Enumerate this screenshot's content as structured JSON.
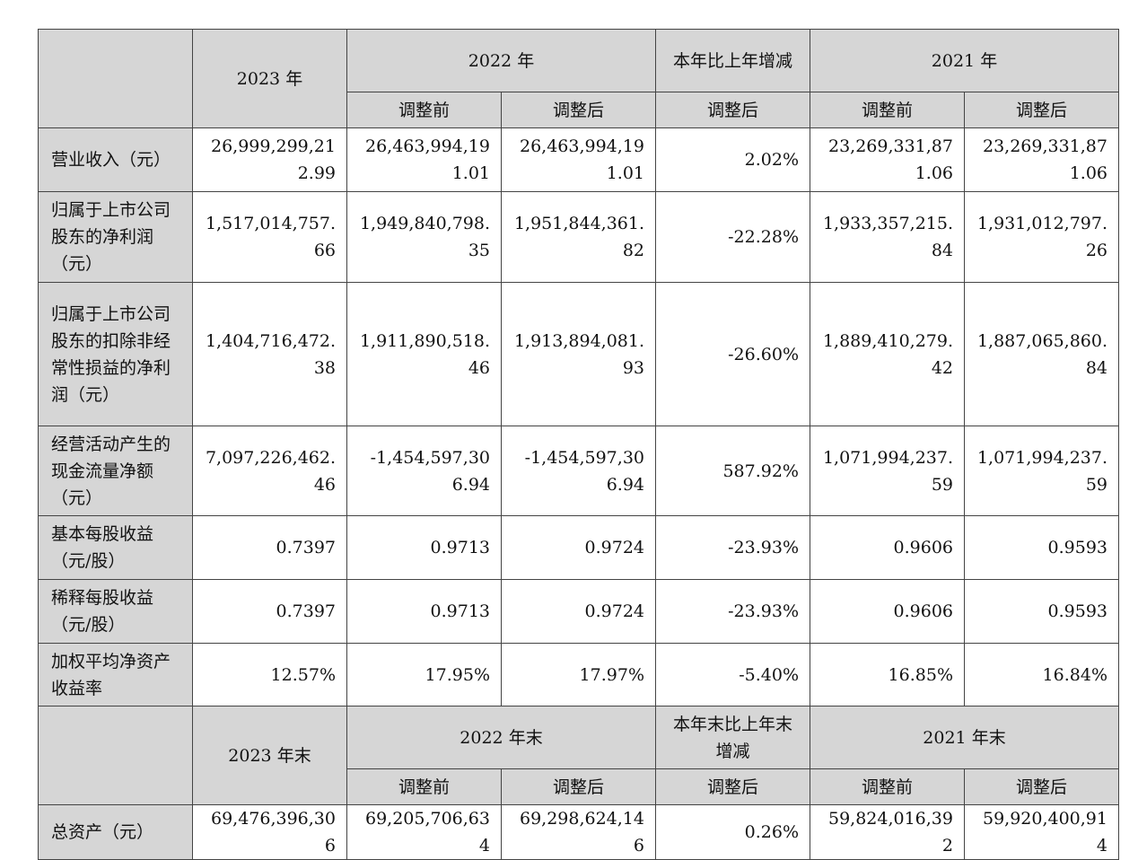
{
  "header1": {
    "y2023": "2023 年",
    "y2022": "2022 年",
    "change": "本年比上年增减",
    "y2021": "2021 年",
    "before": "调整前",
    "after": "调整后"
  },
  "rows": [
    {
      "label": "营业收入（元）",
      "v2023": "26,999,299,212.99",
      "v2022_before": "26,463,994,191.01",
      "v2022_after": "26,463,994,191.01",
      "change": "2.02%",
      "v2021_before": "23,269,331,871.06",
      "v2021_after": "23,269,331,871.06"
    },
    {
      "label": "归属于上市公司股东的净利润（元）",
      "v2023": "1,517,014,757.66",
      "v2022_before": "1,949,840,798.35",
      "v2022_after": "1,951,844,361.82",
      "change": "-22.28%",
      "v2021_before": "1,933,357,215.84",
      "v2021_after": "1,931,012,797.26"
    },
    {
      "label": "归属于上市公司股东的扣除非经常性损益的净利润（元）",
      "v2023": "1,404,716,472.38",
      "v2022_before": "1,911,890,518.46",
      "v2022_after": "1,913,894,081.93",
      "change": "-26.60%",
      "v2021_before": "1,889,410,279.42",
      "v2021_after": "1,887,065,860.84"
    },
    {
      "label": "经营活动产生的现金流量净额（元）",
      "v2023": "7,097,226,462.46",
      "v2022_before": "-1,454,597,306.94",
      "v2022_after": "-1,454,597,306.94",
      "change": "587.92%",
      "v2021_before": "1,071,994,237.59",
      "v2021_after": "1,071,994,237.59"
    },
    {
      "label": "基本每股收益（元/股）",
      "v2023": "0.7397",
      "v2022_before": "0.9713",
      "v2022_after": "0.9724",
      "change": "-23.93%",
      "v2021_before": "0.9606",
      "v2021_after": "0.9593"
    },
    {
      "label": "稀释每股收益（元/股）",
      "v2023": "0.7397",
      "v2022_before": "0.9713",
      "v2022_after": "0.9724",
      "change": "-23.93%",
      "v2021_before": "0.9606",
      "v2021_after": "0.9593"
    },
    {
      "label": "加权平均净资产收益率",
      "v2023": "12.57%",
      "v2022_before": "17.95%",
      "v2022_after": "17.97%",
      "change": "-5.40%",
      "v2021_before": "16.85%",
      "v2021_after": "16.84%"
    }
  ],
  "header2": {
    "y2023": "2023 年末",
    "y2022": "2022 年末",
    "change": "本年末比上年末增减",
    "y2021": "2021 年末",
    "before": "调整前",
    "after": "调整后"
  },
  "rows2": [
    {
      "label": "总资产（元）",
      "v2023": "69,476,396,306",
      "v2022_before": "69,205,706,634",
      "v2022_after": "69,298,624,146",
      "change": "0.26%",
      "v2021_before": "59,824,016,392",
      "v2021_after": "59,920,400,914"
    }
  ]
}
